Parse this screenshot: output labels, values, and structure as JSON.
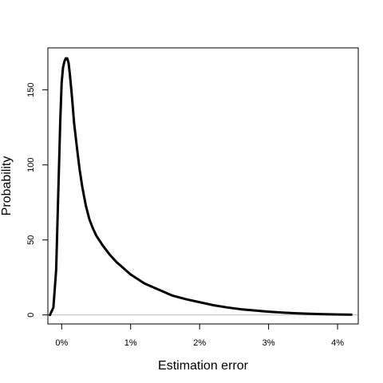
{
  "chart_data": {
    "type": "line",
    "title": "",
    "xlabel": "Estimation error",
    "ylabel": "Probability",
    "xlim": [
      -0.2,
      4.3
    ],
    "ylim": [
      -6,
      178
    ],
    "x_ticks": [
      0,
      1,
      2,
      3,
      4
    ],
    "x_tick_labels": [
      "0%",
      "1%",
      "2%",
      "3%",
      "4%"
    ],
    "y_ticks": [
      0,
      50,
      100,
      150
    ],
    "y_tick_labels": [
      "0",
      "50",
      "100",
      "150"
    ],
    "grid": false,
    "legend": "none",
    "reference_line": {
      "y": 0,
      "color": "#bdbdbd"
    },
    "line_color": "#000000",
    "series": [
      {
        "x": [
          -0.17,
          -0.12,
          -0.08,
          -0.05,
          -0.02,
          0.0,
          0.02,
          0.04,
          0.06,
          0.08,
          0.1,
          0.12,
          0.15,
          0.18,
          0.22,
          0.26,
          0.3,
          0.35,
          0.4,
          0.45,
          0.5,
          0.6,
          0.7,
          0.8,
          0.9,
          1.0,
          1.2,
          1.4,
          1.6,
          1.8,
          2.0,
          2.2,
          2.4,
          2.6,
          2.8,
          3.0,
          3.2,
          3.4,
          3.6,
          3.8,
          4.0,
          4.2
        ],
        "y": [
          0,
          5,
          30,
          80,
          130,
          155,
          165,
          169,
          171,
          171,
          168,
          160,
          145,
          128,
          112,
          97,
          85,
          73,
          64,
          58,
          53,
          46,
          40,
          35,
          31,
          27,
          21,
          17,
          13,
          10.5,
          8.5,
          6.5,
          5,
          3.8,
          3,
          2.2,
          1.6,
          1.1,
          0.8,
          0.5,
          0.3,
          0.2
        ]
      }
    ]
  }
}
